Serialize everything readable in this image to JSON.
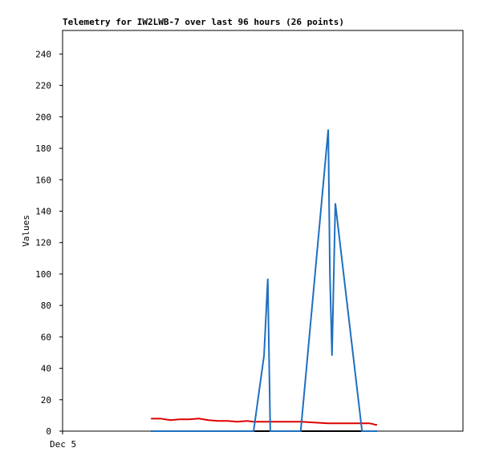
{
  "chart_data": {
    "type": "line",
    "title": "Telemetry for IW2LWB-7 over last 96 hours (26 points)",
    "y_label": "Values",
    "x": [
      21.2,
      23.5,
      25.8,
      28.1,
      30.4,
      32.7,
      35.0,
      37.3,
      39.6,
      41.9,
      44.2,
      45.8,
      48.3,
      49.2,
      49.8,
      57.1,
      63.7,
      64.1,
      64.6,
      65.4,
      71.8,
      72.5,
      73.5,
      74.5,
      75.0,
      75.4
    ],
    "xlim": [
      0,
      96
    ],
    "xticks": [
      {
        "value": 0,
        "label": "Dec 5"
      }
    ],
    "ylim": [
      0,
      255
    ],
    "yticks": [
      0,
      20,
      40,
      60,
      80,
      100,
      120,
      140,
      160,
      180,
      200,
      220,
      240
    ],
    "series": [
      {
        "color": "#000000",
        "values": [
          0,
          0,
          0,
          0,
          0,
          0,
          0,
          0,
          0,
          0,
          0,
          0,
          0,
          0,
          0,
          0,
          0,
          0,
          0,
          0,
          0,
          0,
          0,
          0,
          0,
          0
        ]
      },
      {
        "color": "#dd0000",
        "values": [
          8,
          8,
          7,
          7.5,
          7.5,
          8,
          7,
          6.5,
          6.5,
          6,
          6.5,
          6,
          6,
          6,
          6,
          6,
          5,
          5,
          5,
          5,
          5,
          5,
          5,
          4.5,
          4,
          4
        ]
      },
      {
        "color": "#1f6fc0",
        "values": [
          0,
          0,
          0,
          0,
          0,
          0,
          0,
          0,
          0,
          0,
          0,
          0,
          48,
          97,
          0,
          0,
          192,
          100,
          48,
          145,
          0,
          0,
          0,
          0,
          0,
          0
        ]
      }
    ]
  }
}
